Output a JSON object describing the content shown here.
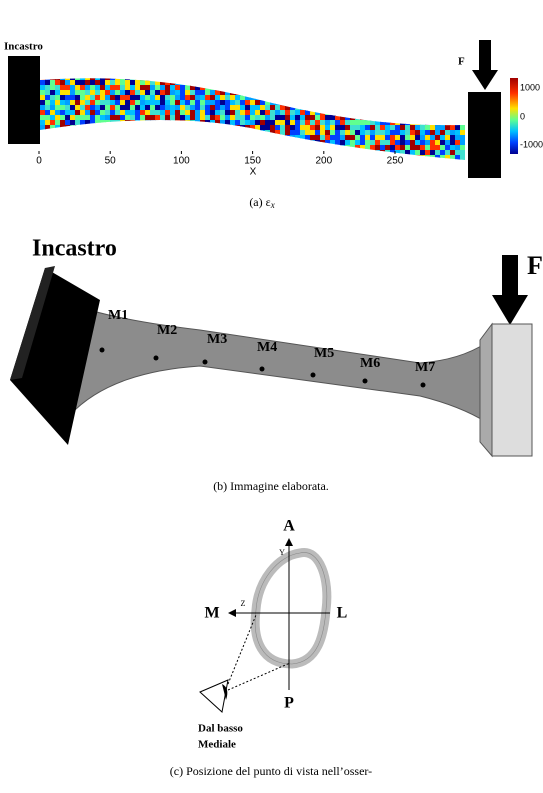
{
  "panel_a": {
    "fixed_label": "Incastro",
    "force_label": "F",
    "x_axis_label": "X",
    "x_ticks": [
      0,
      50,
      100,
      150,
      200,
      250
    ],
    "colorbar_labels": [
      "1000",
      "0",
      "-1000"
    ],
    "caption": {
      "label": "(a)",
      "symbol": "ε",
      "subscript": "x"
    }
  },
  "panel_b": {
    "fixed_label": "Incastro",
    "force_label": "F",
    "points": [
      "M1",
      "M2",
      "M3",
      "M4",
      "M5",
      "M6",
      "M7"
    ],
    "caption": "(b) Immagine elaborata."
  },
  "panel_c": {
    "axis_labels": {
      "top": "A",
      "bottom": "P",
      "left": "M",
      "right": "L",
      "y": "Y",
      "z": "Z"
    },
    "viewpoint": [
      "Dal basso",
      "Mediale"
    ],
    "caption": "(c) Posizione del punto di vista nell’osser-"
  }
}
